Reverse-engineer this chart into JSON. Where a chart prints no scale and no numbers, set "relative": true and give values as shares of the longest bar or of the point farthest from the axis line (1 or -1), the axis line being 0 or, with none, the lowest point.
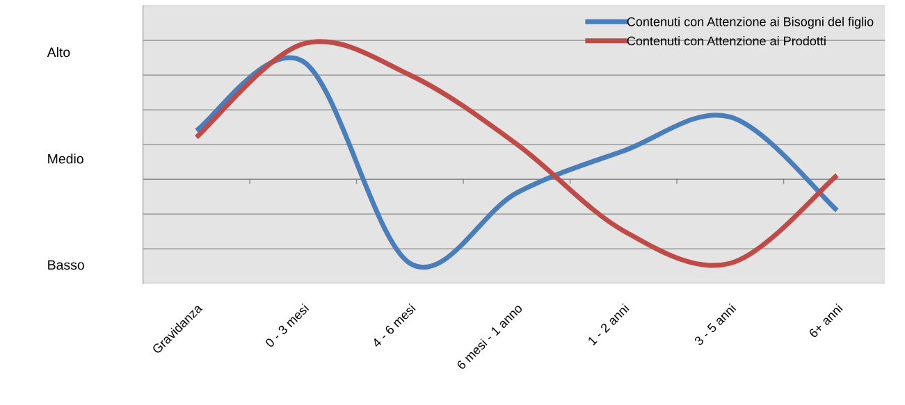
{
  "chart_data": {
    "type": "line",
    "relative": true,
    "categories": [
      "Gravidanza",
      "0 - 3 mesi",
      "4 - 6 mesi",
      "6 mesi - 1 anno",
      "1 - 2 anni",
      "3 - 5 anni",
      "6+ anni"
    ],
    "series": [
      {
        "name": "Contenuti con Attenzione ai Bisogni del figlio",
        "color": "#4a7ebb",
        "values": [
          0.36,
          0.87,
          -0.62,
          -0.1,
          0.21,
          0.46,
          -0.23
        ]
      },
      {
        "name": "Contenuti con Attenzione ai Prodotti",
        "color": "#be4b48",
        "values": [
          0.31,
          1,
          0.77,
          0.26,
          -0.38,
          -0.62,
          0.03
        ]
      }
    ],
    "annotations": [
      "Alto",
      "Medio",
      "Basso"
    ],
    "grid": "y",
    "legend": "top right",
    "line_style": "solid"
  }
}
